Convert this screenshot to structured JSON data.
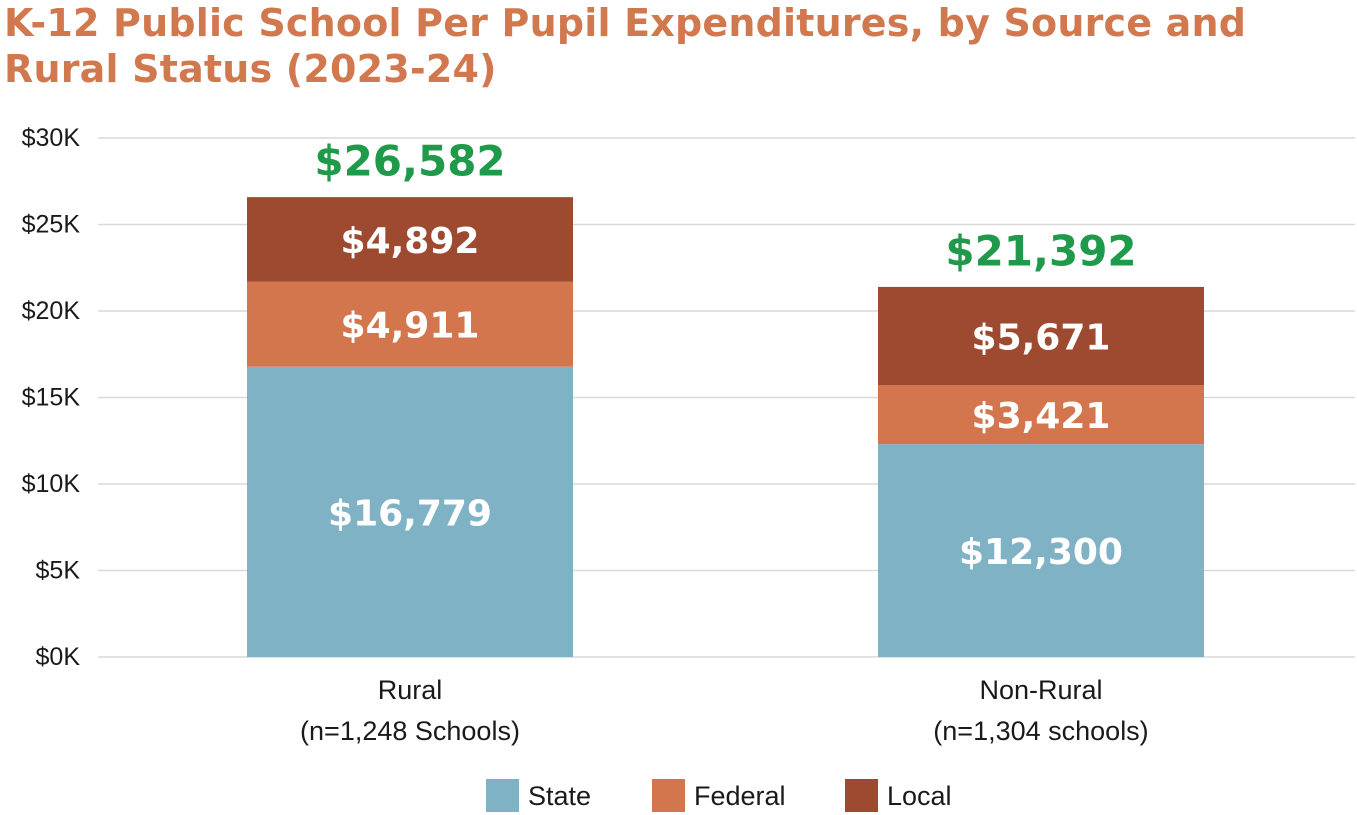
{
  "chart_data": {
    "type": "bar",
    "stacked": true,
    "title": "K-12 Public School Per Pupil Expenditures, by Source and Rural Status (2023-24)",
    "categories": [
      {
        "name": "Rural",
        "sublabel": "(n=1,248 Schools)"
      },
      {
        "name": "Non-Rural",
        "sublabel": "(n=1,304 schools)"
      }
    ],
    "series": [
      {
        "name": "State",
        "color": "#80b2c6",
        "values": [
          16779,
          12300
        ],
        "labels": [
          "$16,779",
          "$12,300"
        ]
      },
      {
        "name": "Federal",
        "color": "#d3764e",
        "values": [
          4911,
          3421
        ],
        "labels": [
          "$4,911",
          "$3,421"
        ]
      },
      {
        "name": "Local",
        "color": "#9d4a30",
        "values": [
          4892,
          5671
        ],
        "labels": [
          "$4,892",
          "$5,671"
        ]
      }
    ],
    "totals": [
      26582,
      21392
    ],
    "total_labels": [
      "$26,582",
      "$21,392"
    ],
    "total_color": "#1f9a4a",
    "ylim": [
      0,
      30000
    ],
    "yticks": [
      0,
      5000,
      10000,
      15000,
      20000,
      25000,
      30000
    ],
    "ytick_labels": [
      "$0K",
      "$5K",
      "$10K",
      "$15K",
      "$20K",
      "$25K",
      "$30K"
    ],
    "grid": true,
    "legend_position": "bottom"
  }
}
